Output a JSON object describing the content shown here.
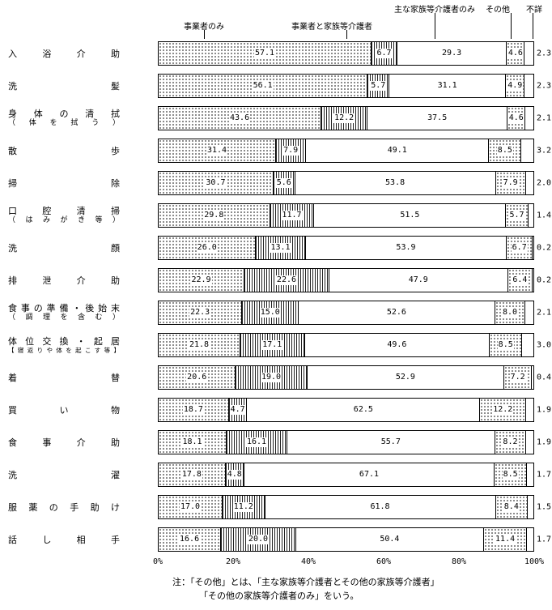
{
  "chart_data": {
    "type": "bar",
    "orientation": "horizontal",
    "stacked": true,
    "unit": "%",
    "xlim": [
      0,
      100
    ],
    "x_ticks": [
      "0%",
      "20%",
      "40%",
      "60%",
      "80%",
      "100%"
    ],
    "series_names": [
      "事業者のみ",
      "事業者と家族等介護者",
      "主な家族等介護者のみ",
      "その他",
      "不詳"
    ],
    "categories": [
      {
        "label": "入浴介助",
        "sub": ""
      },
      {
        "label": "洗髪",
        "sub": ""
      },
      {
        "label": "身体の清拭",
        "sub": "（体を拭う）"
      },
      {
        "label": "散歩",
        "sub": ""
      },
      {
        "label": "掃除",
        "sub": ""
      },
      {
        "label": "口腔清掃",
        "sub": "（はみがき等）"
      },
      {
        "label": "洗顔",
        "sub": ""
      },
      {
        "label": "排泄介助",
        "sub": ""
      },
      {
        "label": "食事の準備・後始末",
        "sub": "（調理を含む）"
      },
      {
        "label": "体位交換・起居",
        "sub": "【寝返りや体を起こす等】"
      },
      {
        "label": "着替",
        "sub": ""
      },
      {
        "label": "買い物",
        "sub": ""
      },
      {
        "label": "食事介助",
        "sub": ""
      },
      {
        "label": "洗濯",
        "sub": ""
      },
      {
        "label": "服薬の手助け",
        "sub": ""
      },
      {
        "label": "話し相手",
        "sub": ""
      }
    ],
    "values": [
      [
        57.1,
        6.7,
        29.3,
        4.6,
        2.3
      ],
      [
        56.1,
        5.7,
        31.1,
        4.9,
        2.3
      ],
      [
        43.6,
        12.2,
        37.5,
        4.6,
        2.1
      ],
      [
        31.4,
        7.9,
        49.1,
        8.5,
        3.2
      ],
      [
        30.7,
        5.6,
        53.8,
        7.9,
        2.0
      ],
      [
        29.8,
        11.7,
        51.5,
        5.7,
        1.4
      ],
      [
        26.0,
        13.1,
        53.9,
        6.7,
        0.2
      ],
      [
        22.9,
        22.6,
        47.9,
        6.4,
        0.2
      ],
      [
        22.3,
        15.0,
        52.6,
        8.0,
        2.1
      ],
      [
        21.8,
        17.1,
        49.6,
        8.5,
        3.0
      ],
      [
        20.6,
        19.0,
        52.9,
        7.2,
        0.4
      ],
      [
        18.7,
        4.7,
        62.5,
        12.2,
        1.9
      ],
      [
        18.1,
        16.1,
        55.7,
        8.2,
        1.9
      ],
      [
        17.8,
        4.8,
        67.1,
        8.5,
        1.7
      ],
      [
        17.0,
        11.2,
        61.8,
        8.4,
        1.5
      ],
      [
        16.6,
        20.0,
        50.4,
        11.4,
        1.7
      ]
    ],
    "legend_position": "top",
    "grid": false
  },
  "note": {
    "line1": "注：「その他」とは、「主な家族等介護者とその他の家族等介護者」",
    "line2": "「その他の家族等介護者のみ」をいう。"
  }
}
